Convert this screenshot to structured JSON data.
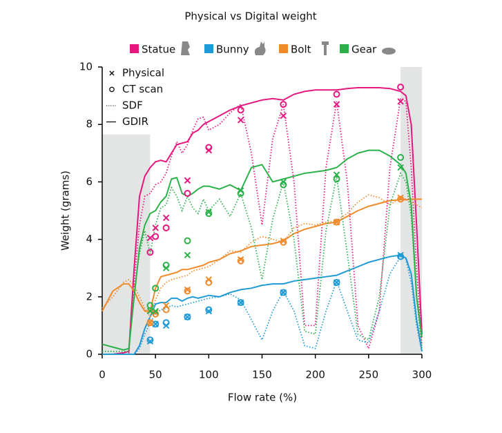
{
  "chart_data": {
    "type": "line",
    "title": "Physical vs Digital weight",
    "xlabel": "Flow rate (%)",
    "ylabel": "Weight (grams)",
    "xlim": [
      0,
      300
    ],
    "ylim": [
      0,
      10
    ],
    "xticks": [
      0,
      50,
      100,
      150,
      200,
      250,
      300
    ],
    "yticks": [
      0,
      2,
      4,
      6,
      8,
      10
    ],
    "shaded": [
      {
        "xlim": [
          0,
          45
        ],
        "ylim": [
          0,
          7.65
        ]
      },
      {
        "xlim": [
          280,
          300
        ],
        "ylim": [
          0,
          10
        ]
      }
    ],
    "method_labels": {
      "physical": "Physical",
      "ct_scan": "CT scan",
      "sdf": "SDF",
      "gdir": "GDIR"
    },
    "measure_x": [
      45,
      50,
      60,
      80,
      100,
      130,
      170,
      220,
      280
    ],
    "x": [
      0,
      10,
      20,
      25,
      30,
      35,
      40,
      45,
      50,
      55,
      60,
      65,
      70,
      75,
      80,
      85,
      90,
      95,
      100,
      110,
      120,
      130,
      140,
      150,
      160,
      170,
      180,
      190,
      200,
      210,
      220,
      230,
      240,
      250,
      260,
      270,
      280,
      285,
      290,
      295,
      300
    ],
    "objects": [
      {
        "name": "Statue",
        "color": "#e5177f",
        "physical": [
          4.05,
          4.4,
          4.75,
          6.05,
          7.1,
          8.15,
          8.3,
          8.7,
          8.8
        ],
        "ct_scan": [
          3.55,
          4.1,
          4.4,
          5.6,
          7.2,
          8.5,
          8.7,
          9.05,
          9.3
        ],
        "sdf": [
          0,
          0,
          0,
          0,
          2.5,
          4.5,
          5.5,
          5.6,
          5.9,
          6.0,
          6.3,
          6.9,
          7.4,
          7.0,
          7.3,
          7.8,
          8.2,
          8.25,
          7.8,
          8.0,
          8.4,
          8.7,
          7.0,
          4.5,
          7.5,
          8.7,
          6.0,
          1.0,
          1.0,
          6.5,
          8.8,
          6.0,
          1.0,
          0.2,
          1.5,
          6.5,
          8.9,
          8.8,
          6.5,
          3.0,
          0.3
        ],
        "gdir": [
          0,
          0,
          0.05,
          0.1,
          3.0,
          5.5,
          6.2,
          6.5,
          6.7,
          6.75,
          6.7,
          7.0,
          7.3,
          7.35,
          7.4,
          7.7,
          7.8,
          8.0,
          8.1,
          8.3,
          8.5,
          8.65,
          8.75,
          8.85,
          8.9,
          8.85,
          9.05,
          9.15,
          9.2,
          9.2,
          9.2,
          9.25,
          9.28,
          9.28,
          9.28,
          9.25,
          9.15,
          9.0,
          8.0,
          4.5,
          0.7
        ]
      },
      {
        "name": "Bunny",
        "color": "#1e9ad6",
        "physical": [
          0.45,
          1.05,
          1.0,
          1.3,
          1.5,
          1.8,
          2.15,
          2.5,
          3.45
        ],
        "ct_scan": [
          0.5,
          1.05,
          1.1,
          1.3,
          1.55,
          1.8,
          2.15,
          2.5,
          3.4
        ],
        "sdf": [
          0,
          0,
          0,
          0,
          0,
          0.2,
          0.7,
          1.1,
          1.4,
          1.55,
          1.6,
          1.7,
          1.65,
          1.7,
          1.75,
          1.8,
          1.85,
          1.9,
          1.95,
          2.0,
          2.1,
          1.9,
          1.2,
          0.5,
          1.5,
          2.2,
          1.5,
          0.3,
          0.2,
          1.5,
          2.55,
          1.5,
          0.5,
          0.4,
          1.5,
          2.8,
          3.4,
          3.3,
          2.5,
          1.0,
          0.1
        ],
        "gdir": [
          0,
          0,
          0,
          0,
          0,
          0.3,
          0.9,
          1.3,
          1.75,
          1.8,
          1.8,
          1.95,
          1.95,
          1.85,
          1.95,
          2.0,
          1.95,
          2.0,
          2.05,
          2.0,
          2.15,
          2.25,
          2.3,
          2.4,
          2.45,
          2.45,
          2.55,
          2.6,
          2.65,
          2.7,
          2.75,
          2.9,
          3.05,
          3.2,
          3.3,
          3.4,
          3.45,
          3.35,
          2.8,
          1.2,
          0.1
        ]
      },
      {
        "name": "Bolt",
        "color": "#f08a2a",
        "physical": [
          1.1,
          1.45,
          1.7,
          2.25,
          2.6,
          3.3,
          3.95,
          4.6,
          5.45
        ],
        "ct_scan": [
          1.1,
          1.4,
          1.55,
          2.2,
          2.5,
          3.25,
          3.9,
          4.6,
          5.4
        ],
        "sdf": [
          1.6,
          2.0,
          2.5,
          2.6,
          2.4,
          2.0,
          1.6,
          1.3,
          1.9,
          2.3,
          2.5,
          2.6,
          2.65,
          2.7,
          2.75,
          2.9,
          2.95,
          3.0,
          3.05,
          3.3,
          3.6,
          3.55,
          3.9,
          4.1,
          4.0,
          3.9,
          4.4,
          4.55,
          4.5,
          4.6,
          4.65,
          4.9,
          5.3,
          5.55,
          5.45,
          5.2,
          5.45,
          5.4,
          5.3,
          5.2,
          5.1
        ],
        "gdir": [
          1.5,
          2.2,
          2.45,
          2.45,
          2.2,
          1.8,
          1.5,
          1.5,
          2.3,
          2.7,
          2.75,
          2.8,
          2.85,
          2.95,
          2.95,
          3.0,
          3.05,
          3.1,
          3.2,
          3.3,
          3.5,
          3.6,
          3.75,
          3.8,
          3.85,
          3.95,
          4.2,
          4.35,
          4.45,
          4.55,
          4.6,
          4.8,
          5.0,
          5.15,
          5.25,
          5.35,
          5.38,
          5.38,
          5.4,
          5.4,
          5.4
        ]
      },
      {
        "name": "Gear",
        "color": "#2bb04a",
        "physical": [
          1.5,
          1.5,
          3.0,
          3.45,
          4.95,
          5.7,
          6.0,
          6.25,
          6.5
        ],
        "ct_scan": [
          1.7,
          2.3,
          3.1,
          3.95,
          4.9,
          5.6,
          5.9,
          6.1,
          6.85
        ],
        "sdf": [
          0.1,
          0.1,
          0.1,
          0.1,
          2.2,
          3.5,
          4.3,
          3.5,
          4.5,
          5.1,
          5.2,
          5.8,
          5.5,
          5.0,
          5.5,
          5.1,
          4.9,
          5.4,
          5.0,
          5.4,
          4.8,
          5.6,
          4.4,
          2.6,
          4.7,
          6.0,
          4.0,
          0.8,
          0.7,
          4.3,
          6.2,
          3.5,
          0.7,
          0.5,
          2.0,
          5.2,
          6.3,
          6.0,
          4.8,
          2.0,
          0.2
        ],
        "gdir": [
          0.35,
          0.25,
          0.15,
          0.2,
          2.0,
          3.7,
          4.5,
          4.9,
          5.0,
          5.3,
          5.5,
          6.1,
          6.15,
          5.6,
          5.5,
          5.6,
          5.75,
          5.85,
          5.85,
          5.75,
          5.9,
          5.7,
          6.5,
          6.6,
          6.0,
          6.1,
          6.2,
          6.3,
          6.35,
          6.4,
          6.5,
          6.8,
          7.0,
          7.1,
          7.1,
          6.9,
          6.6,
          6.3,
          5.2,
          2.0,
          0.6
        ]
      }
    ]
  }
}
